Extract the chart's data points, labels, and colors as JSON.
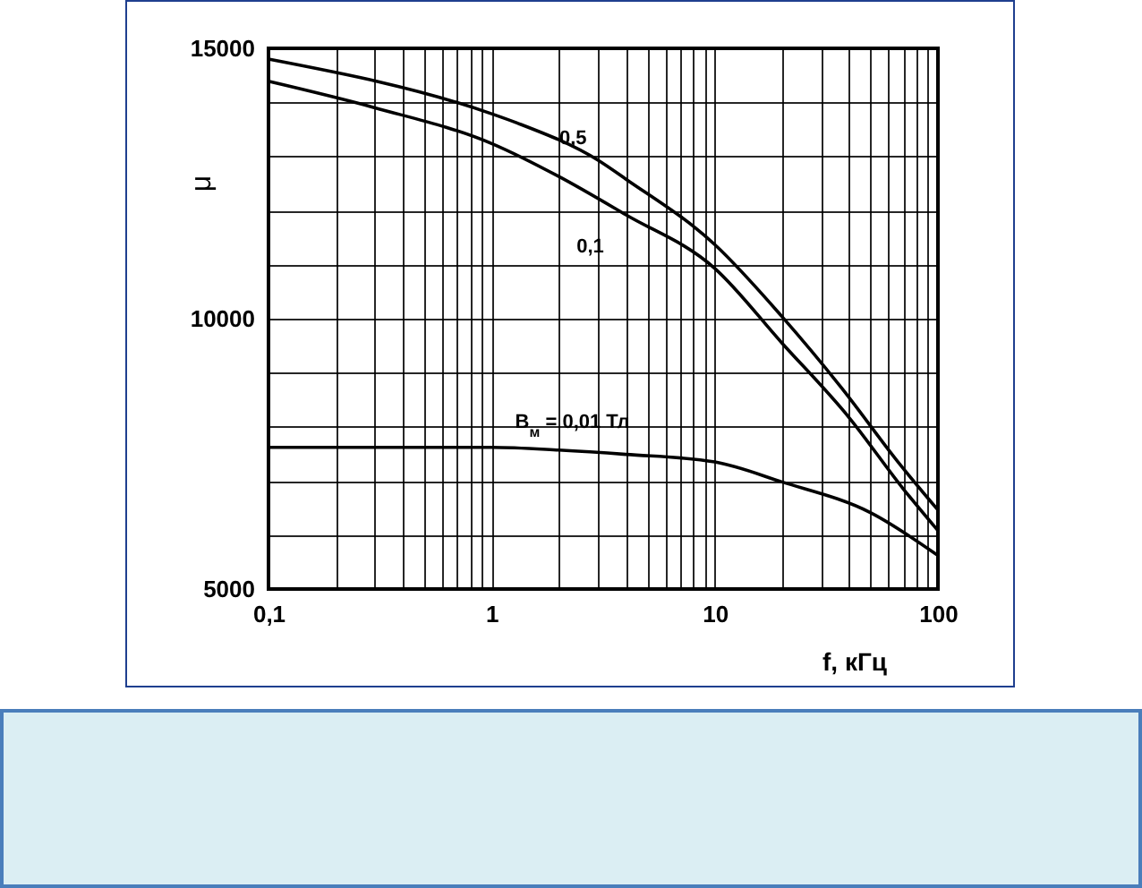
{
  "chart_data": {
    "type": "line",
    "xlabel": "f, кГц",
    "ylabel": "μ",
    "log": "x",
    "grid": true,
    "marker": "none",
    "line_style": "solid",
    "xlim": [
      0.1,
      100
    ],
    "xticks": [
      {
        "value": 0.1,
        "label": "0,1"
      },
      {
        "value": 0.2,
        "label": null
      },
      {
        "value": 0.3,
        "label": null
      },
      {
        "value": 0.4,
        "label": null
      },
      {
        "value": 0.5,
        "label": null
      },
      {
        "value": 0.6,
        "label": null
      },
      {
        "value": 0.7,
        "label": null
      },
      {
        "value": 0.8,
        "label": null
      },
      {
        "value": 0.9,
        "label": null
      },
      1,
      {
        "value": 2,
        "label": null
      },
      {
        "value": 3,
        "label": null
      },
      {
        "value": 4,
        "label": null
      },
      {
        "value": 5,
        "label": null
      },
      {
        "value": 6,
        "label": null
      },
      {
        "value": 7,
        "label": null
      },
      {
        "value": 8,
        "label": null
      },
      {
        "value": 9,
        "label": null
      },
      10,
      {
        "value": 20,
        "label": null
      },
      {
        "value": 30,
        "label": null
      },
      {
        "value": 40,
        "label": null
      },
      {
        "value": 50,
        "label": null
      },
      {
        "value": 60,
        "label": null
      },
      {
        "value": 70,
        "label": null
      },
      {
        "value": 80,
        "label": null
      },
      {
        "value": 90,
        "label": null
      },
      100
    ],
    "ylim": [
      5000,
      15000
    ],
    "yticks": [
      5000,
      {
        "value": 6000,
        "label": null
      },
      {
        "value": 7000,
        "label": null
      },
      {
        "value": 8000,
        "label": null
      },
      {
        "value": 9000,
        "label": null
      },
      10000,
      {
        "value": 11000,
        "label": null
      },
      {
        "value": 12000,
        "label": null
      },
      {
        "value": 13000,
        "label": null
      },
      {
        "value": 14000,
        "label": null
      },
      15000
    ],
    "series": [
      {
        "name": "0,5",
        "color": "#000000",
        "x": [
          0.1,
          1,
          1.3,
          3,
          4,
          10,
          20,
          37,
          68,
          100
        ],
        "values": [
          14800,
          13790,
          13620,
          12930,
          12580,
          11370,
          10040,
          8720,
          7290,
          6460
        ]
      },
      {
        "name": "0,1",
        "color": "#000000",
        "x": [
          0.1,
          0.3,
          1,
          2,
          4,
          10,
          20,
          40,
          70,
          100
        ],
        "values": [
          14390,
          13900,
          13240,
          12630,
          11920,
          10930,
          9550,
          8170,
          6850,
          6080
        ]
      },
      {
        "name": "B$_{м}$ = 0,01 Тл",
        "color": "#000000",
        "x": [
          0.1,
          1,
          2,
          4,
          10,
          20,
          50,
          100
        ],
        "values": [
          7620,
          7620,
          7570,
          7490,
          7350,
          6980,
          6410,
          5620
        ]
      }
    ]
  }
}
